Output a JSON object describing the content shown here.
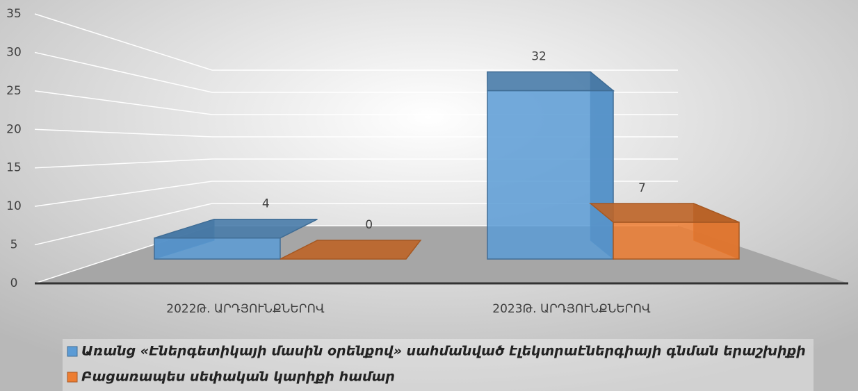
{
  "chart_data": {
    "type": "bar",
    "categories": [
      "2022Թ. ԱՐԴՅՈՒՆՔՆԵՐՈՎ",
      "2023Թ. ԱՐԴՅՈՒՆՔՆԵՐՈՎ"
    ],
    "series": [
      {
        "name": "Առանց «Էներգետիկայի մասին օրենքով» սահմանված էլեկտրաէներգիայի գնման երաշխիքի",
        "color": "#5b9bd5",
        "values": [
          4,
          32
        ]
      },
      {
        "name": "Բացառապես սեփական կարիքի համար",
        "color": "#ed7d31",
        "values": [
          0,
          7
        ]
      }
    ],
    "ylim": [
      0,
      35
    ],
    "yticks": [
      0,
      5,
      10,
      15,
      20,
      25,
      30,
      35
    ],
    "grid": true,
    "legend": "bottom"
  }
}
